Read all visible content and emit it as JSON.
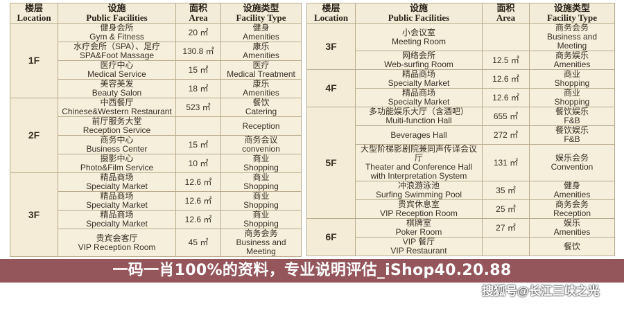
{
  "headers": [
    {
      "cn": "楼层",
      "en": "Location"
    },
    {
      "cn": "设施",
      "en": "Public Facilities"
    },
    {
      "cn": "面积",
      "en": "Area"
    },
    {
      "cn": "设施类型",
      "en": "Facility Type"
    }
  ],
  "left": [
    {
      "floor": "1F",
      "items": [
        {
          "cn": "健身会所",
          "en": "Gym & Fitness",
          "area": "20 ㎡",
          "type_cn": "健身",
          "type_en": "Amenities"
        },
        {
          "cn": "水疗会所（SPA）、足疗",
          "en": "SPA&Foot Massage",
          "area": "130.8 ㎡",
          "type_cn": "康乐",
          "type_en": "Amenities"
        },
        {
          "cn": "医疗中心",
          "en": "Medical Service",
          "area": "15 ㎡",
          "type_cn": "医疗",
          "type_en": "Medical Treatment"
        },
        {
          "cn": "美容美发",
          "en": "Beauty Salon",
          "area": "18 ㎡",
          "type_cn": "康乐",
          "type_en": "Amenities"
        }
      ]
    },
    {
      "floor": "2F",
      "items": [
        {
          "cn": "中西餐厅",
          "en": "Chinese&Western Restaurant",
          "area": "523 ㎡",
          "type_cn": "餐饮",
          "type_en": "Catering"
        },
        {
          "cn": "前厅服务大堂",
          "en": "Reception Service",
          "area": "",
          "type_cn": "",
          "type_en": "Reception"
        },
        {
          "cn": "商务中心",
          "en": "Business Center",
          "area": "15 ㎡",
          "type_cn": "商务会议",
          "type_en": "convenion"
        },
        {
          "cn": "摄影中心",
          "en": "Photo&Film Service",
          "area": "10 ㎡",
          "type_cn": "商业",
          "type_en": "Shopping"
        }
      ]
    },
    {
      "floor": "3F",
      "items": [
        {
          "cn": "精品商场",
          "en": "Specialty Market",
          "area": "12.6 ㎡",
          "type_cn": "商业",
          "type_en": "Shopping"
        },
        {
          "cn": "精品商场",
          "en": "Specialty Market",
          "area": "12.6 ㎡",
          "type_cn": "商业",
          "type_en": "Shopping"
        },
        {
          "cn": "精品商场",
          "en": "Specialty Market",
          "area": "12.6 ㎡",
          "type_cn": "商业",
          "type_en": "Shopping"
        },
        {
          "cn": "贵宾会客厅",
          "en": "VIP Reception Room",
          "area": "45 ㎡",
          "type_cn": "商务会务",
          "type_en": "Business and Meeting"
        }
      ]
    }
  ],
  "right": [
    {
      "floor": "3F",
      "items": [
        {
          "cn": "小会议室",
          "en": "Meeting Room",
          "area": "",
          "type_cn": "商务会务",
          "type_en": "Business and Meeting"
        },
        {
          "cn": "网络会所",
          "en": "Web-surfing Room",
          "area": "12.5 ㎡",
          "type_cn": "商务娱乐",
          "type_en": "Amenities"
        }
      ]
    },
    {
      "floor": "4F",
      "items": [
        {
          "cn": "精品商场",
          "en": "Specialty Market",
          "area": "12.6 ㎡",
          "type_cn": "商业",
          "type_en": "Shopping"
        },
        {
          "cn": "精品商场",
          "en": "Specialty Market",
          "area": "12.6 ㎡",
          "type_cn": "商业",
          "type_en": "Shopping"
        }
      ]
    },
    {
      "floor": "5F",
      "items": [
        {
          "cn": "多功能娱乐大厅（含酒吧）",
          "en": "Muiti-function Hall",
          "area": "655 ㎡",
          "type_cn": "餐饮娱乐",
          "type_en": "F&B"
        },
        {
          "cn": "",
          "en": "Beverages Hall",
          "area": "272 ㎡",
          "type_cn": "餐饮娱乐",
          "type_en": "F&B"
        },
        {
          "cn": "大型阶梯影剧院兼同声传译会议厅",
          "en": "Theater and Conference Hall with Interpretation System",
          "area": "131 ㎡",
          "type_cn": "娱乐会务",
          "type_en": "Convention"
        },
        {
          "cn": "冲浪游泳池",
          "en": "Surfing Swimming Pool",
          "area": "35 ㎡",
          "type_cn": "健身",
          "type_en": "Amenities"
        },
        {
          "cn": "贵宾休息室",
          "en": "VIP Reception Room",
          "area": "25 ㎡",
          "type_cn": "商务会务",
          "type_en": "Reception"
        }
      ]
    },
    {
      "floor": "6F",
      "items": [
        {
          "cn": "棋牌室",
          "en": "Poker Room",
          "area": "27 ㎡",
          "type_cn": "娱乐",
          "type_en": "Amenities"
        },
        {
          "cn": "VIP 餐厅",
          "en": "VIP Restaurant",
          "area": "",
          "type_cn": "餐饮",
          "type_en": ""
        }
      ]
    }
  ],
  "banner": {
    "text": "一码一肖100%的资料，专业说明评估_iShop40.20.88",
    "color": "#7d3037"
  },
  "watermark": "搜狐号@长江三峡之光"
}
